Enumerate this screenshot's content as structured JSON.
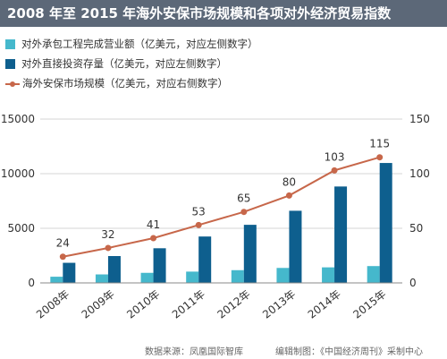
{
  "header": {
    "title": "2008 年至 2015 年海外安保市场规模和各项对外经济贸易指数"
  },
  "footer": {
    "source": "数据来源：凤凰国际智库",
    "editor": "编辑制图：《中国经济周刊》采制中心"
  },
  "chart_data": {
    "type": "bar",
    "title": "2008 年至 2015 年海外安保市场规模和各项对外经济贸易指数",
    "categories": [
      "2008年",
      "2009年",
      "2010年",
      "2011年",
      "2012年",
      "2013年",
      "2014年",
      "2015年"
    ],
    "series": [
      {
        "name": "对外承包工程完成营业额（亿美元，对应左侧数字）",
        "type": "bar",
        "axis": "left",
        "color": "#45b8cc",
        "values": [
          566,
          777,
          922,
          1034,
          1166,
          1371,
          1424,
          1541
        ]
      },
      {
        "name": "对外直接投资存量（亿美元，对应左侧数字）",
        "type": "bar",
        "axis": "left",
        "color": "#0e5f8e",
        "values": [
          1840,
          2458,
          3172,
          4248,
          5319,
          6605,
          8826,
          10979
        ]
      },
      {
        "name": "海外安保市场规模（亿美元，对应右侧数字）",
        "type": "line",
        "axis": "right",
        "color": "#c7674a",
        "values": [
          24,
          32,
          41,
          53,
          65,
          80,
          103,
          115
        ],
        "labels": [
          "24",
          "32",
          "41",
          "53",
          "65",
          "80",
          "103",
          "115"
        ]
      }
    ],
    "y_left": {
      "ylim": [
        0,
        15000
      ],
      "ticks": [
        0,
        5000,
        10000,
        15000
      ],
      "tick_labels": [
        "0",
        "5000",
        "10000",
        "15000"
      ]
    },
    "y_right": {
      "ylim": [
        0,
        150
      ],
      "ticks": [
        0,
        50,
        100,
        150
      ],
      "tick_labels": [
        "0",
        "50",
        "100",
        "150"
      ]
    },
    "grid": true,
    "legend": "top-left"
  }
}
